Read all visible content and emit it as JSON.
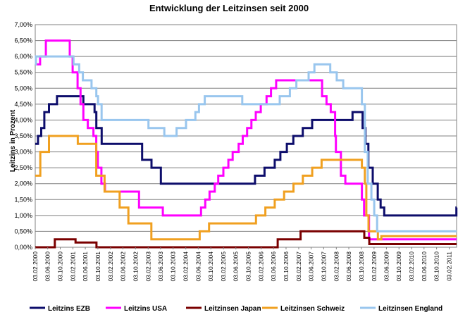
{
  "chart_data": {
    "type": "line",
    "title": "Entwicklung der Leitzinsen seit 2000",
    "xlabel": "",
    "ylabel": "Leitzins in Prozent",
    "ylim": [
      0,
      7
    ],
    "y_ticks": [
      "0,00%",
      "0,50%",
      "1,00%",
      "1,50%",
      "2,00%",
      "2,50%",
      "3,00%",
      "3,50%",
      "4,00%",
      "4,50%",
      "5,00%",
      "5,50%",
      "6,00%",
      "6,50%",
      "7,00%"
    ],
    "x_ticks": [
      "03.02.2000",
      "03.06.2000",
      "03.10.2000",
      "03.02.2001",
      "03.06.2001",
      "03.10.2001",
      "03.02.2002",
      "03.06.2002",
      "03.10.2002",
      "03.02.2003",
      "03.06.2003",
      "03.10.2003",
      "03.02.2004",
      "03.06.2004",
      "03.10.2004",
      "03.02.2005",
      "03.06.2005",
      "03.10.2005",
      "03.02.2006",
      "03.06.2006",
      "03.10.2006",
      "03.02.2007",
      "03.06.2007",
      "03.10.2007",
      "03.02.2008",
      "03.06.2008",
      "03.10.2008",
      "03.02.2009",
      "03.06.2009",
      "03.10.2009",
      "03.02.2010",
      "03.06.2010",
      "03.10.2010",
      "03.02.2011"
    ],
    "grid": true,
    "legend": "bottom",
    "x_end": "2011-04-15",
    "series": [
      {
        "name": "Leitzins EZB",
        "color": "#0d0d6b",
        "steps": [
          [
            "2000-02-03",
            3.25
          ],
          [
            "2000-03-01",
            3.5
          ],
          [
            "2000-04-01",
            3.75
          ],
          [
            "2000-05-01",
            4.25
          ],
          [
            "2000-06-15",
            4.5
          ],
          [
            "2000-09-01",
            4.75
          ],
          [
            "2001-05-15",
            4.5
          ],
          [
            "2001-09-01",
            4.25
          ],
          [
            "2001-09-18",
            3.75
          ],
          [
            "2001-11-09",
            3.25
          ],
          [
            "2002-12-06",
            2.75
          ],
          [
            "2003-03-07",
            2.5
          ],
          [
            "2003-06-06",
            2.0
          ],
          [
            "2005-12-06",
            2.25
          ],
          [
            "2006-03-08",
            2.5
          ],
          [
            "2006-06-15",
            2.75
          ],
          [
            "2006-08-09",
            3.0
          ],
          [
            "2006-10-11",
            3.25
          ],
          [
            "2006-12-13",
            3.5
          ],
          [
            "2007-03-14",
            3.75
          ],
          [
            "2007-06-13",
            4.0
          ],
          [
            "2008-07-09",
            4.25
          ],
          [
            "2008-10-15",
            3.75
          ],
          [
            "2008-11-12",
            3.25
          ],
          [
            "2008-12-10",
            2.5
          ],
          [
            "2009-01-21",
            2.0
          ],
          [
            "2009-03-11",
            1.5
          ],
          [
            "2009-04-08",
            1.25
          ],
          [
            "2009-05-13",
            1.0
          ],
          [
            "2011-04-13",
            1.25
          ]
        ]
      },
      {
        "name": "Leitzins USA",
        "color": "#ff00ff",
        "steps": [
          [
            "2000-02-03",
            5.75
          ],
          [
            "2000-03-21",
            6.0
          ],
          [
            "2000-05-16",
            6.5
          ],
          [
            "2001-01-03",
            6.0
          ],
          [
            "2001-01-31",
            5.5
          ],
          [
            "2001-03-20",
            5.0
          ],
          [
            "2001-04-18",
            4.5
          ],
          [
            "2001-05-15",
            4.0
          ],
          [
            "2001-06-27",
            3.75
          ],
          [
            "2001-08-21",
            3.5
          ],
          [
            "2001-09-17",
            3.0
          ],
          [
            "2001-10-02",
            2.5
          ],
          [
            "2001-11-06",
            2.0
          ],
          [
            "2001-12-11",
            1.75
          ],
          [
            "2002-11-06",
            1.25
          ],
          [
            "2003-06-25",
            1.0
          ],
          [
            "2004-06-30",
            1.25
          ],
          [
            "2004-08-10",
            1.5
          ],
          [
            "2004-09-21",
            1.75
          ],
          [
            "2004-11-10",
            2.0
          ],
          [
            "2004-12-14",
            2.25
          ],
          [
            "2005-02-02",
            2.5
          ],
          [
            "2005-03-22",
            2.75
          ],
          [
            "2005-05-03",
            3.0
          ],
          [
            "2005-06-30",
            3.25
          ],
          [
            "2005-08-09",
            3.5
          ],
          [
            "2005-09-20",
            3.75
          ],
          [
            "2005-11-01",
            4.0
          ],
          [
            "2005-12-13",
            4.25
          ],
          [
            "2006-01-31",
            4.5
          ],
          [
            "2006-03-28",
            4.75
          ],
          [
            "2006-05-10",
            5.0
          ],
          [
            "2006-06-29",
            5.25
          ],
          [
            "2007-09-18",
            4.75
          ],
          [
            "2007-10-31",
            4.5
          ],
          [
            "2007-12-11",
            4.25
          ],
          [
            "2008-01-22",
            3.5
          ],
          [
            "2008-01-30",
            3.0
          ],
          [
            "2008-03-18",
            2.25
          ],
          [
            "2008-04-30",
            2.0
          ],
          [
            "2008-10-08",
            1.5
          ],
          [
            "2008-10-29",
            1.0
          ],
          [
            "2008-12-16",
            0.25
          ]
        ]
      },
      {
        "name": "Leitzinsen Japan",
        "color": "#7a0000",
        "steps": [
          [
            "2000-02-03",
            0.0
          ],
          [
            "2000-08-11",
            0.25
          ],
          [
            "2001-02-28",
            0.15
          ],
          [
            "2001-09-19",
            0.0
          ],
          [
            "2006-07-14",
            0.25
          ],
          [
            "2007-02-21",
            0.5
          ],
          [
            "2008-10-31",
            0.3
          ],
          [
            "2008-12-19",
            0.1
          ]
        ]
      },
      {
        "name": "Leitzinsen Schweiz",
        "color": "#f0a020",
        "steps": [
          [
            "2000-02-03",
            2.25
          ],
          [
            "2000-03-23",
            3.0
          ],
          [
            "2000-06-15",
            3.5
          ],
          [
            "2001-03-22",
            3.25
          ],
          [
            "2001-09-17",
            2.25
          ],
          [
            "2001-12-07",
            1.75
          ],
          [
            "2002-05-02",
            1.25
          ],
          [
            "2002-07-26",
            0.75
          ],
          [
            "2003-03-06",
            0.25
          ],
          [
            "2004-06-17",
            0.5
          ],
          [
            "2004-09-16",
            0.75
          ],
          [
            "2005-12-15",
            1.0
          ],
          [
            "2006-03-16",
            1.25
          ],
          [
            "2006-06-15",
            1.5
          ],
          [
            "2006-09-14",
            1.75
          ],
          [
            "2006-12-14",
            2.0
          ],
          [
            "2007-03-15",
            2.25
          ],
          [
            "2007-06-14",
            2.5
          ],
          [
            "2007-09-13",
            2.75
          ],
          [
            "2008-10-08",
            2.5
          ],
          [
            "2008-11-06",
            2.0
          ],
          [
            "2008-11-20",
            1.0
          ],
          [
            "2008-12-11",
            0.5
          ],
          [
            "2009-03-12",
            0.25
          ],
          [
            "2009-04-15",
            0.35
          ]
        ]
      },
      {
        "name": "Leitzinsen England",
        "color": "#99c6ee",
        "steps": [
          [
            "2000-02-03",
            5.75
          ],
          [
            "2000-02-10",
            6.0
          ],
          [
            "2001-02-08",
            5.75
          ],
          [
            "2001-04-05",
            5.5
          ],
          [
            "2001-05-10",
            5.25
          ],
          [
            "2001-08-02",
            5.0
          ],
          [
            "2001-09-18",
            4.75
          ],
          [
            "2001-10-04",
            4.5
          ],
          [
            "2001-11-08",
            4.0
          ],
          [
            "2003-02-06",
            3.75
          ],
          [
            "2003-07-10",
            3.5
          ],
          [
            "2003-11-06",
            3.75
          ],
          [
            "2004-02-05",
            4.0
          ],
          [
            "2004-05-06",
            4.25
          ],
          [
            "2004-06-10",
            4.5
          ],
          [
            "2004-08-05",
            4.75
          ],
          [
            "2005-08-04",
            4.5
          ],
          [
            "2006-08-03",
            4.75
          ],
          [
            "2006-11-09",
            5.0
          ],
          [
            "2007-01-11",
            5.25
          ],
          [
            "2007-05-10",
            5.5
          ],
          [
            "2007-07-05",
            5.75
          ],
          [
            "2007-12-06",
            5.5
          ],
          [
            "2008-02-07",
            5.25
          ],
          [
            "2008-04-10",
            5.0
          ],
          [
            "2008-10-08",
            4.5
          ],
          [
            "2008-11-06",
            3.0
          ],
          [
            "2008-12-04",
            2.0
          ],
          [
            "2009-01-08",
            1.5
          ],
          [
            "2009-02-05",
            1.0
          ],
          [
            "2009-03-05",
            0.5
          ]
        ]
      }
    ]
  }
}
